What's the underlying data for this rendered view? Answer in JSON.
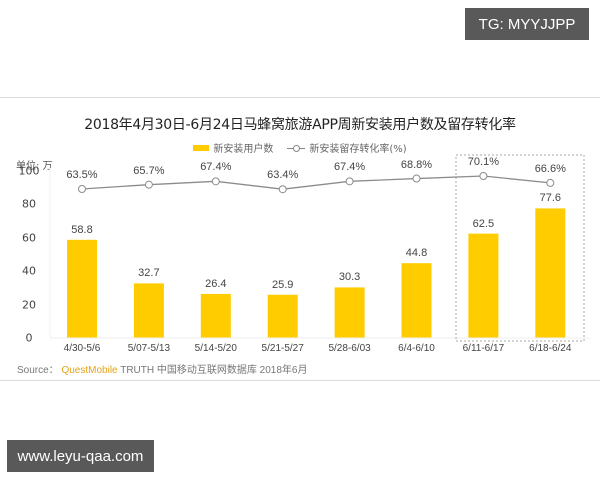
{
  "watermarks": {
    "top_right": "TG: MYYJJPP",
    "bottom_left": "www.leyu-qaa.com"
  },
  "chart_data": {
    "type": "bar",
    "title": "2018年4月30日-6月24日马蜂窝旅游APP周新安装用户数及留存转化率",
    "unit_label": "单位: 万",
    "xlabel": "",
    "ylabel": "单位: 万",
    "ylim": [
      0,
      100
    ],
    "yticks": [
      0,
      20,
      40,
      60,
      80,
      100
    ],
    "grid": false,
    "legend_position": "top",
    "categories": [
      "4/30-5/6",
      "5/07-5/13",
      "5/14-5/20",
      "5/21-5/27",
      "5/28-6/03",
      "6/4-6/10",
      "6/11-6/17",
      "6/18-6/24"
    ],
    "series": [
      {
        "name": "新安装用户数",
        "type": "bar",
        "color": "#FFCC00",
        "values": [
          58.8,
          32.7,
          26.4,
          25.9,
          30.3,
          44.8,
          62.5,
          77.6
        ],
        "labels": [
          "58.8",
          "32.7",
          "26.4",
          "25.9",
          "30.3",
          "44.8",
          "62.5",
          "77.6"
        ]
      },
      {
        "name": "新安装留存转化率(%)",
        "type": "line",
        "color": "#888888",
        "values": [
          63.5,
          65.7,
          67.4,
          63.4,
          67.4,
          68.8,
          70.1,
          66.6
        ],
        "labels": [
          "63.5%",
          "65.7%",
          "67.4%",
          "63.4%",
          "67.4%",
          "68.8%",
          "70.1%",
          "66.6%"
        ]
      }
    ],
    "annotations": [
      {
        "type": "dashed-box",
        "covers": [
          "6/11-6/17",
          "6/18-6/24"
        ]
      }
    ]
  },
  "source": {
    "prefix": "Source：",
    "brand": "QuestMobile",
    "rest": " TRUTH 中国移动互联网数据库 2018年6月"
  }
}
